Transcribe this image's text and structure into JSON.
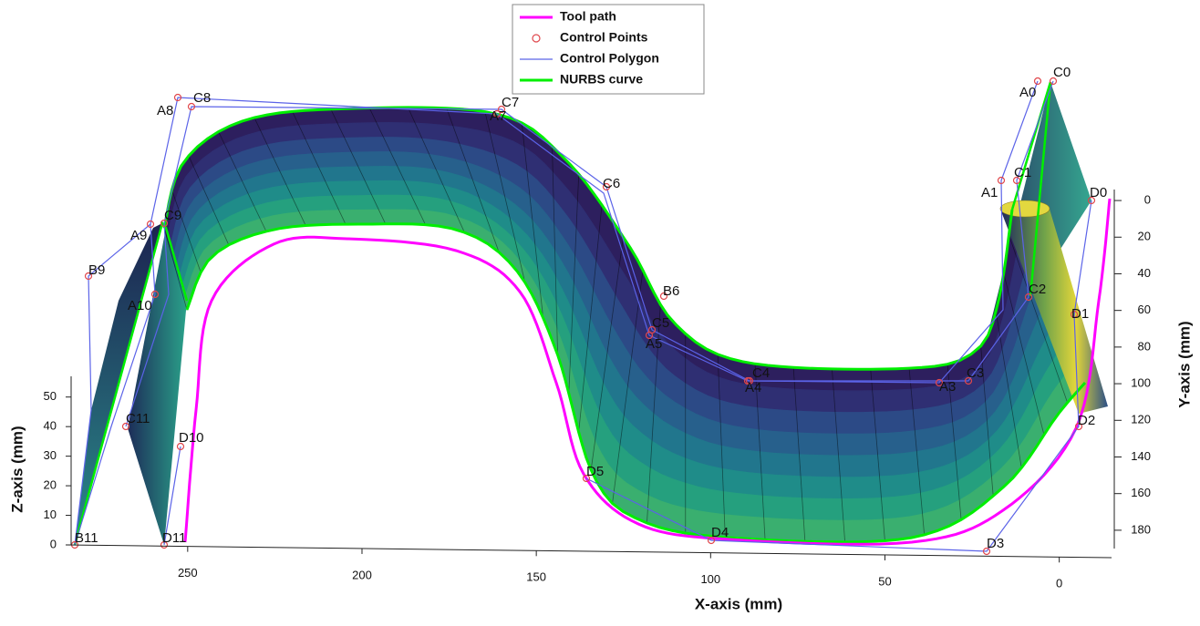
{
  "chart_data": {
    "type": "surface3d",
    "xlabel": "X-axis (mm)",
    "ylabel": "Y-axis (mm)",
    "zlabel": "Z-axis (mm)",
    "xlim": [
      285,
      -15
    ],
    "xticks": [
      250,
      200,
      150,
      100,
      50,
      0
    ],
    "ylim": [
      -6,
      190
    ],
    "yticks": [
      0,
      20,
      40,
      60,
      80,
      100,
      120,
      140,
      160,
      180
    ],
    "zlim": [
      0,
      57
    ],
    "zticks": [
      0,
      10,
      20,
      30,
      40,
      50
    ],
    "legend": "top",
    "series": [
      {
        "name": "Tool path",
        "color": "#ff00ff"
      },
      {
        "name": "Control Points",
        "color": "#e0474c"
      },
      {
        "name": "Control Polygon",
        "color": "#5b63e8"
      },
      {
        "name": "NURBS curve",
        "color": "#00ee00"
      }
    ],
    "point_labels": [
      "C0",
      "A0",
      "A8",
      "C8",
      "C7",
      "A7",
      "C6",
      "C1",
      "A1",
      "D0",
      "B9",
      "A9",
      "C9",
      "A10",
      "B6",
      "C5",
      "A5",
      "C4",
      "A4",
      "A3",
      "C3",
      "C2",
      "D1",
      "D2",
      "D3",
      "D4",
      "D5",
      "D10",
      "D11",
      "C11",
      "B11"
    ]
  }
}
